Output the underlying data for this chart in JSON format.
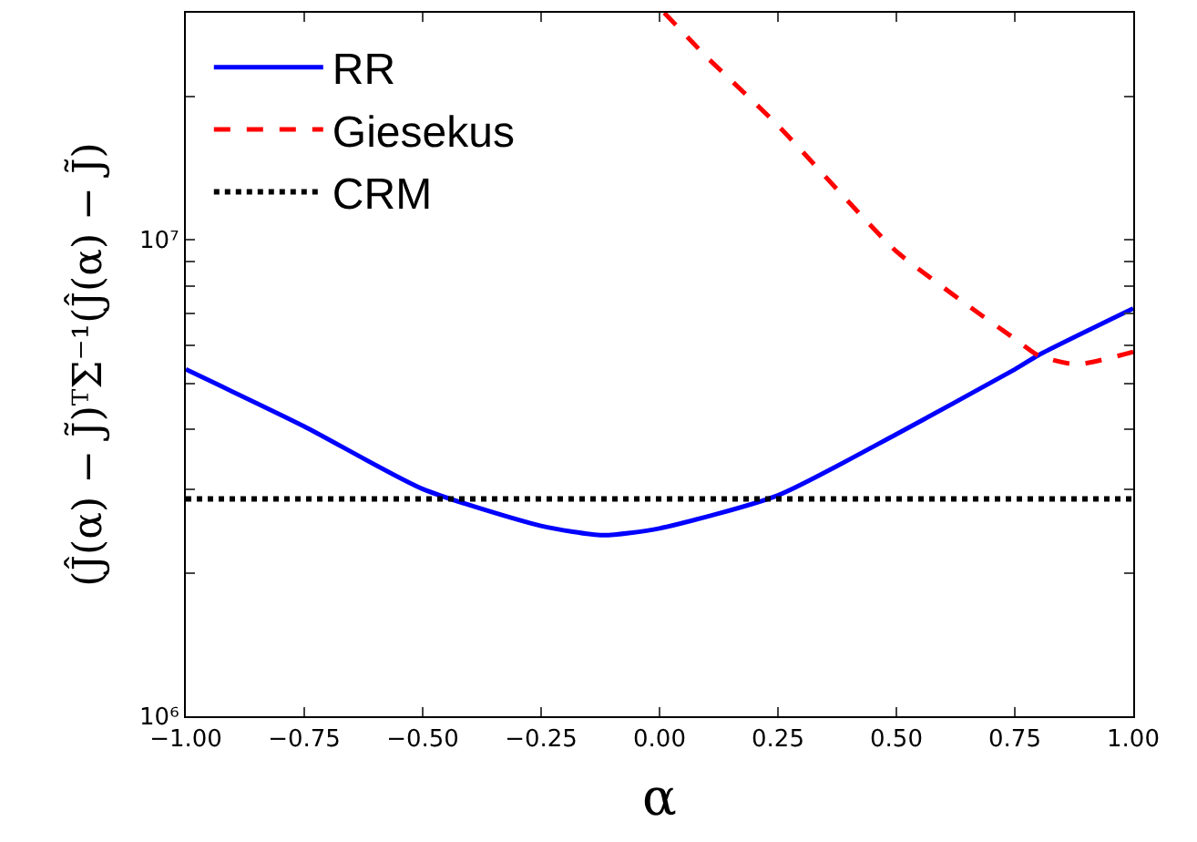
{
  "chart_data": {
    "type": "line",
    "xlabel": "α",
    "ylabel": "(Ĵ(α) − J̃)ᵀΣ⁻¹(Ĵ(α) − J̃)",
    "log": "y",
    "grid": false,
    "legend": "top left",
    "marker": "none",
    "xlim": [
      -1,
      1
    ],
    "xticks": [
      {
        "value": -1,
        "label": "−1.00"
      },
      {
        "value": -0.75,
        "label": "−0.75"
      },
      {
        "value": -0.5,
        "label": "−0.50"
      },
      {
        "value": -0.25,
        "label": "−0.25"
      },
      {
        "value": 0,
        "label": "0.00"
      },
      {
        "value": 0.25,
        "label": "0.25"
      },
      {
        "value": 0.5,
        "label": "0.50"
      },
      {
        "value": 0.75,
        "label": "0.75"
      },
      {
        "value": 1,
        "label": "1.00"
      }
    ],
    "ylim": [
      1000000,
      30000000
    ],
    "yticks": [
      {
        "value": 1000000,
        "label": "10⁶"
      },
      {
        "value": 2000000,
        "label": null
      },
      {
        "value": 3000000,
        "label": null
      },
      {
        "value": 4000000,
        "label": null
      },
      {
        "value": 5000000,
        "label": null
      },
      {
        "value": 6000000,
        "label": null
      },
      {
        "value": 7000000,
        "label": null
      },
      {
        "value": 8000000,
        "label": null
      },
      {
        "value": 9000000,
        "label": null
      },
      {
        "value": 10000000,
        "label": "10⁷"
      },
      {
        "value": 20000000,
        "label": null
      }
    ],
    "series": [
      {
        "name": "RR",
        "color": "#0000ff",
        "line_style": "solid",
        "x": [
          -1,
          -0.75,
          -0.5,
          -0.25,
          -0.12,
          0,
          0.25,
          0.5,
          0.75,
          0.8,
          1
        ],
        "values": [
          5350000,
          4060000,
          3000000,
          2510000,
          2400000,
          2480000,
          2910000,
          3910000,
          5350000,
          5730000,
          7180000
        ]
      },
      {
        "name": "Giesekus",
        "color": "#ff0000",
        "line_style": "dashed",
        "x": [
          0.01,
          0.1,
          0.25,
          0.4,
          0.5,
          0.65,
          0.75,
          0.8,
          0.88,
          1
        ],
        "values": [
          30000000,
          24200000,
          17400000,
          12000000,
          9460000,
          7300000,
          6200000,
          5720000,
          5480000,
          5820000
        ]
      },
      {
        "name": "CRM",
        "color": "#000000",
        "line_style": "dotted",
        "x": [
          -1,
          1
        ],
        "values": [
          2860000,
          2860000
        ]
      }
    ]
  }
}
